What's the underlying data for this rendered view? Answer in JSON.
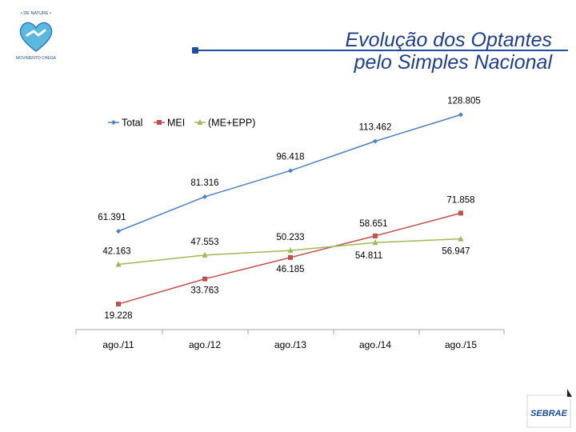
{
  "header": {
    "title_line1": "Evolução dos Optantes",
    "title_line2": "pelo Simples Nacional",
    "logo_name": "heart-handshake-seal",
    "sebrae_label": "SEBRAE"
  },
  "colors": {
    "title": "#1f3f8a",
    "rule": "#1f4e9c",
    "total": "#4f81bd",
    "mei": "#c0504d",
    "me_epp": "#9bbb59",
    "axis": "#a6a6a6",
    "sebrae_blue": "#1b4b9b"
  },
  "chart_data": {
    "type": "line",
    "categories": [
      "ago./11",
      "ago./12",
      "ago./13",
      "ago./14",
      "ago./15"
    ],
    "series": [
      {
        "name": "Total",
        "marker": "diamond",
        "values": [
          61391,
          81316,
          96418,
          113462,
          128805
        ],
        "labels": [
          "61.391",
          "81.316",
          "96.418",
          "113.462",
          "128.805"
        ]
      },
      {
        "name": "MEI",
        "marker": "square",
        "values": [
          19228,
          33763,
          46185,
          58651,
          71858
        ],
        "labels": [
          "19.228",
          "33.763",
          "46.185",
          "58.651",
          "71.858"
        ]
      },
      {
        "name": "(ME+EPP)",
        "marker": "triangle",
        "values": [
          42163,
          47553,
          50233,
          54811,
          56947
        ],
        "labels": [
          "42.163",
          "47.553",
          "50.233",
          "54.811",
          "56.947"
        ]
      }
    ],
    "legend": "top-left",
    "grid": false,
    "ylim": [
      10000,
      135000
    ]
  }
}
